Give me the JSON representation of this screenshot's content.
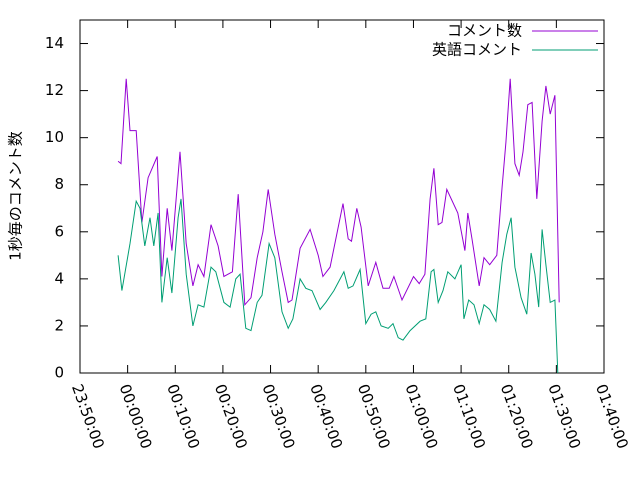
{
  "chart_data": {
    "type": "line",
    "ylabel": "1秒毎のコメント数",
    "xlim": [
      0,
      110
    ],
    "ylim": [
      0,
      15
    ],
    "xticks": [
      {
        "value": 0,
        "label": "23:50:00"
      },
      {
        "value": 10,
        "label": "00:00:00"
      },
      {
        "value": 20,
        "label": "00:10:00"
      },
      {
        "value": 30,
        "label": "00:20:00"
      },
      {
        "value": 40,
        "label": "00:30:00"
      },
      {
        "value": 50,
        "label": "00:40:00"
      },
      {
        "value": 60,
        "label": "00:50:00"
      },
      {
        "value": 70,
        "label": "01:00:00"
      },
      {
        "value": 80,
        "label": "01:10:00"
      },
      {
        "value": 90,
        "label": "01:20:00"
      },
      {
        "value": 100,
        "label": "01:30:00"
      },
      {
        "value": 110,
        "label": "01:40:00"
      }
    ],
    "yticks": [
      0,
      2,
      4,
      6,
      8,
      10,
      12,
      14
    ],
    "legend": "top right",
    "series": [
      {
        "name": "コメント数",
        "color": "#9400d3",
        "x": [
          8,
          8.6,
          9.7,
          10.5,
          11.8,
          13,
          14.3,
          16.2,
          17.2,
          18.3,
          19.3,
          21,
          22.3,
          23.7,
          24.8,
          26,
          27.5,
          29,
          30.2,
          32,
          33.2,
          34.6,
          35.9,
          37.2,
          38.4,
          39.5,
          40.9,
          42.4,
          43.7,
          44.5,
          46.2,
          48.3,
          50,
          51,
          52.5,
          55.2,
          56.3,
          57,
          58.1,
          59,
          60.5,
          62.1,
          63.6,
          64.9,
          65.9,
          67.6,
          70,
          71.2,
          72.4,
          73.5,
          74.3,
          75.2,
          76,
          77,
          79.3,
          80.8,
          81.4,
          82.3,
          83.8,
          84.8,
          86,
          87.5,
          88.6,
          89.4,
          90.3,
          91.3,
          92.2,
          93,
          94,
          94.9,
          95.9,
          97,
          97.8,
          98.7,
          99.7,
          100.6
        ],
        "values": [
          9.0,
          8.9,
          12.5,
          10.3,
          10.3,
          6.4,
          8.3,
          9.2,
          4.1,
          7.0,
          5.2,
          9.4,
          5.5,
          3.7,
          4.6,
          4.1,
          6.3,
          5.4,
          4.1,
          4.3,
          7.6,
          2.9,
          3.2,
          4.9,
          6.0,
          7.8,
          5.9,
          4.3,
          3.0,
          3.1,
          5.3,
          6.1,
          5.0,
          4.1,
          4.5,
          7.2,
          5.7,
          5.6,
          7.0,
          6.2,
          3.7,
          4.7,
          3.6,
          3.6,
          4.1,
          3.1,
          4.1,
          3.8,
          4.2,
          7.4,
          8.7,
          6.3,
          6.4,
          7.8,
          6.8,
          5.2,
          6.8,
          5.7,
          3.7,
          4.9,
          4.6,
          5.0,
          7.9,
          9.8,
          12.5,
          8.9,
          8.4,
          9.4,
          11.4,
          11.5,
          7.4,
          10.7,
          12.2,
          11.0,
          11.8,
          3.0
        ]
      },
      {
        "name": "英語コメント",
        "color": "#009e73",
        "x": [
          8,
          8.8,
          10.5,
          11.8,
          12.6,
          13.6,
          14.7,
          15.5,
          16.4,
          17.2,
          18.3,
          19.3,
          20.6,
          21.2,
          22.3,
          23.7,
          24.8,
          26,
          27.5,
          28.5,
          30.2,
          31.5,
          32.7,
          33.6,
          34.8,
          35.9,
          37.2,
          38.2,
          39.7,
          40.9,
          42.4,
          43.7,
          44.7,
          46.2,
          47.4,
          48.7,
          50.4,
          51.6,
          53.3,
          55.4,
          56.3,
          57.3,
          58.8,
          60,
          61.1,
          62.1,
          63.2,
          64.7,
          65.7,
          66.8,
          67.8,
          69.3,
          71.4,
          72.6,
          73.7,
          74.3,
          75.2,
          76.2,
          77.2,
          78.7,
          80,
          80.6,
          81.6,
          82.7,
          83.8,
          84.8,
          86,
          87.3,
          88.6,
          89.6,
          90.5,
          91.3,
          92.6,
          93.8,
          94.7,
          95.5,
          96.3,
          97,
          97.8,
          98.7,
          99.7,
          100.3
        ],
        "values": [
          5.0,
          3.5,
          5.5,
          7.3,
          7.0,
          5.4,
          6.6,
          5.4,
          6.8,
          3.0,
          4.9,
          3.4,
          6.6,
          7.4,
          4.2,
          2.0,
          2.9,
          2.8,
          4.5,
          4.3,
          3.0,
          2.8,
          4.0,
          4.2,
          1.9,
          1.8,
          3.0,
          3.3,
          5.5,
          4.9,
          2.6,
          1.9,
          2.3,
          4.0,
          3.6,
          3.5,
          2.7,
          3.0,
          3.5,
          4.3,
          3.6,
          3.7,
          4.4,
          2.1,
          2.5,
          2.6,
          2.0,
          1.9,
          2.1,
          1.5,
          1.4,
          1.8,
          2.2,
          2.3,
          4.3,
          4.4,
          3.0,
          3.5,
          4.3,
          4.0,
          4.6,
          2.3,
          3.1,
          2.9,
          2.1,
          2.9,
          2.7,
          2.2,
          4.7,
          5.9,
          6.6,
          4.5,
          3.2,
          2.5,
          5.1,
          4.2,
          2.8,
          6.1,
          4.6,
          3.0,
          3.1,
          0
        ]
      }
    ]
  }
}
